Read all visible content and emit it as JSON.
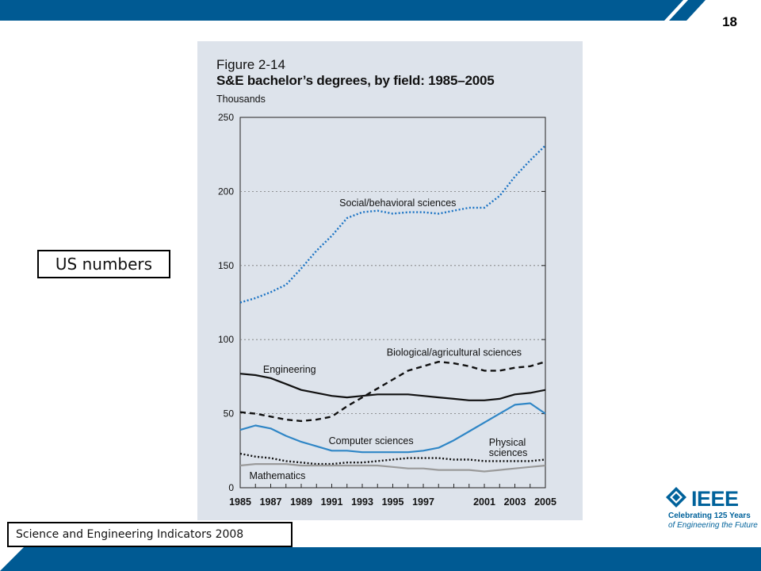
{
  "slide": {
    "number": "18",
    "callout": "US numbers",
    "source": "Science and Engineering Indicators 2008"
  },
  "brand": {
    "logo_text": "IEEE",
    "tagline_line1": "Celebrating 125 Years",
    "tagline_line2": "of Engineering the Future",
    "colors": {
      "band": "#005a93",
      "logo": "#00629b",
      "panel": "#dde3eb"
    }
  },
  "chart_data": {
    "type": "line",
    "figure_number": "Figure 2-14",
    "title": "S&E bachelor’s degrees, by field: 1985–2005",
    "ylabel": "Thousands",
    "xlabel": "",
    "ylim": [
      0,
      250
    ],
    "xlim": [
      1985,
      2005
    ],
    "y_ticks": [
      0,
      50,
      100,
      150,
      200,
      250
    ],
    "x_ticks": [
      1985,
      1987,
      1989,
      1991,
      1993,
      1995,
      1997,
      2001,
      2003,
      2005
    ],
    "grid": "horizontal-dashed",
    "x": [
      1985,
      1986,
      1987,
      1988,
      1989,
      1990,
      1991,
      1992,
      1993,
      1994,
      1995,
      1996,
      1997,
      1998,
      1999,
      2000,
      2001,
      2002,
      2003,
      2004,
      2005
    ],
    "series": [
      {
        "name": "Social/behavioral sciences",
        "style": "dotted",
        "color": "#1a73c4",
        "values": [
          125,
          128,
          132,
          137,
          148,
          160,
          170,
          182,
          186,
          187,
          185,
          186,
          186,
          185,
          187,
          189,
          189,
          197,
          210,
          221,
          231
        ]
      },
      {
        "name": "Biological/agricultural sciences",
        "style": "dashed",
        "color": "#111111",
        "values": [
          51,
          50,
          48,
          46,
          45,
          46,
          48,
          55,
          61,
          67,
          73,
          79,
          82,
          85,
          84,
          82,
          79,
          79,
          81,
          82,
          85
        ]
      },
      {
        "name": "Engineering",
        "style": "solid",
        "color": "#111111",
        "values": [
          77,
          76,
          74,
          70,
          66,
          64,
          62,
          61,
          62,
          63,
          63,
          63,
          62,
          61,
          60,
          59,
          59,
          60,
          63,
          64,
          66
        ]
      },
      {
        "name": "Computer sciences",
        "style": "solid",
        "color": "#2f86c6",
        "values": [
          39,
          42,
          40,
          35,
          31,
          28,
          25,
          25,
          24,
          24,
          24,
          24,
          25,
          27,
          32,
          38,
          44,
          50,
          56,
          57,
          50
        ]
      },
      {
        "name": "Physical sciences",
        "style": "dotted",
        "color": "#111111",
        "values": [
          23,
          21,
          20,
          18,
          17,
          16,
          16,
          17,
          17,
          18,
          19,
          20,
          20,
          20,
          19,
          19,
          18,
          18,
          18,
          18,
          19
        ]
      },
      {
        "name": "Mathematics",
        "style": "solid",
        "color": "#9a9a9a",
        "values": [
          15,
          16,
          16,
          16,
          15,
          15,
          15,
          15,
          15,
          15,
          14,
          13,
          13,
          12,
          12,
          12,
          11,
          12,
          13,
          14,
          15
        ]
      }
    ]
  }
}
